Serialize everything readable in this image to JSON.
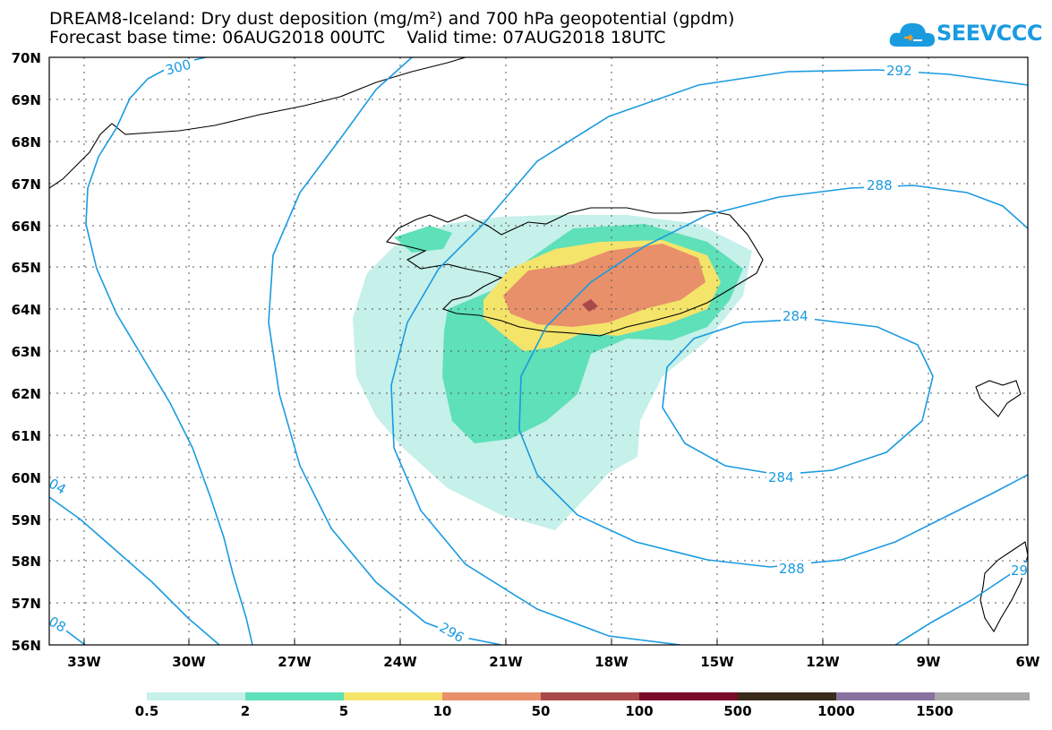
{
  "title": {
    "line1": "DREAM8-Iceland: Dry dust deposition (mg/m²) and 700 hPa geopotential (gpdm)",
    "line2": "Forecast base time: 06AUG2018 00UTC    Valid time: 07AUG2018 18UTC"
  },
  "logo": {
    "text": "SEEVCCC",
    "icon": "cloud-icon"
  },
  "map": {
    "region": "Iceland",
    "lat_labels": [
      "70N",
      "69N",
      "68N",
      "67N",
      "66N",
      "65N",
      "64N",
      "63N",
      "62N",
      "61N",
      "60N",
      "59N",
      "58N",
      "57N",
      "56N"
    ],
    "lon_labels": [
      "33W",
      "30W",
      "27W",
      "24W",
      "21W",
      "18W",
      "15W",
      "12W",
      "9W",
      "6W"
    ],
    "gridlines": true,
    "contour_color": "#1a9be0",
    "contour_labels": [
      {
        "id": "c300",
        "text": "300"
      },
      {
        "id": "c292",
        "text": "292"
      },
      {
        "id": "c288a",
        "text": "288"
      },
      {
        "id": "c284a",
        "text": "284"
      },
      {
        "id": "c284b",
        "text": "284"
      },
      {
        "id": "c288b",
        "text": "288"
      },
      {
        "id": "c296",
        "text": "296"
      },
      {
        "id": "c304",
        "text": "04"
      },
      {
        "id": "c308",
        "text": "08"
      },
      {
        "id": "c29",
        "text": "29"
      }
    ]
  },
  "colorbar": {
    "labels": [
      "0.5",
      "2",
      "5",
      "10",
      "50",
      "100",
      "500",
      "1000",
      "1500"
    ],
    "colors": [
      "#c6f0ea",
      "#5ee0b8",
      "#f4e46a",
      "#e8906a",
      "#a84a4a",
      "#7a0a2a",
      "#3a2a1a",
      "#8a70a0",
      "#a8a8a8"
    ]
  }
}
